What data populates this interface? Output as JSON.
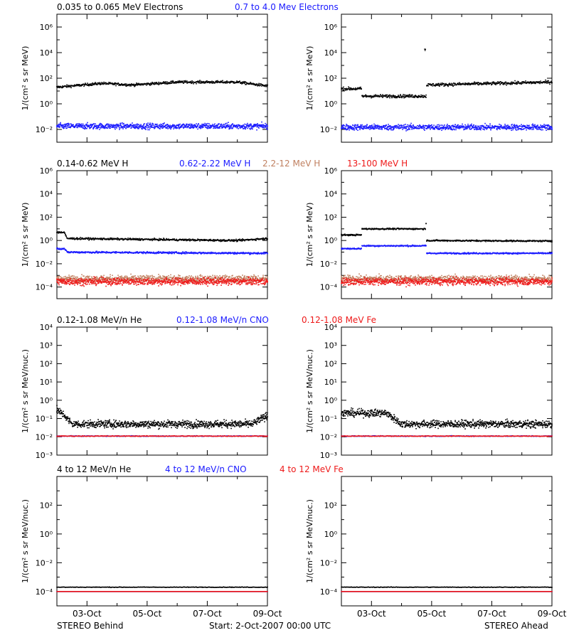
{
  "colors": {
    "black": "#000000",
    "blue": "#1a1aff",
    "tan": "#c08060",
    "red": "#ee1a1a",
    "axis": "#000000",
    "background": "#ffffff"
  },
  "footer": {
    "left_label": "STEREO Behind",
    "center_label": "Start:  2-Oct-2007 00:00 UTC",
    "right_label": "STEREO Ahead"
  },
  "chart_data": [
    {
      "panel": "Electrons - STEREO Behind",
      "type": "scatter",
      "x_axis": {
        "type": "date",
        "range": [
          "2007-10-02T00:00",
          "2007-10-09T00:00"
        ],
        "ticks": [
          "2007-10-03",
          "2007-10-05",
          "2007-10-07",
          "2007-10-09"
        ],
        "tick_labels": [
          "03-Oct",
          "05-Oct",
          "07-Oct",
          "09-Oct"
        ],
        "tick_labels_shown": false
      },
      "y_axis": {
        "scale": "log",
        "exp_range": [
          -3,
          7
        ],
        "major_ticks": [
          -2,
          0,
          2,
          4,
          6
        ],
        "ylabel": "1/(cm² s sr MeV)"
      },
      "legend": [
        "0.035 to 0.065 MeV Electrons",
        "0.7 to 4.0 Mev Electrons"
      ],
      "series": [
        {
          "name": "0.035 to 0.065 MeV Electrons",
          "color": "black",
          "x": [
            "2007-10-02T00:00",
            "2007-10-03T12:00",
            "2007-10-04T12:00",
            "2007-10-06T00:00",
            "2007-10-08T00:00",
            "2007-10-09T00:00"
          ],
          "y": [
            20,
            40,
            30,
            50,
            50,
            25
          ],
          "scatter": 0.1
        },
        {
          "name": "0.7 to 4.0 Mev Electrons",
          "color": "blue",
          "x": [
            "2007-10-02T00:00",
            "2007-10-09T00:00"
          ],
          "y": [
            0.018,
            0.018
          ],
          "scatter": 0.22
        }
      ]
    },
    {
      "panel": "Electrons - STEREO Ahead",
      "type": "scatter",
      "x_axis": {
        "type": "date",
        "range": [
          "2007-10-02T00:00",
          "2007-10-09T00:00"
        ],
        "ticks": [
          "2007-10-03",
          "2007-10-05",
          "2007-10-07",
          "2007-10-09"
        ],
        "tick_labels": [
          "03-Oct",
          "05-Oct",
          "07-Oct",
          "09-Oct"
        ],
        "tick_labels_shown": false
      },
      "y_axis": {
        "scale": "log",
        "exp_range": [
          -3,
          7
        ],
        "major_ticks": [
          -2,
          0,
          2,
          4,
          6
        ],
        "ylabel": "1/(cm² s sr MeV)"
      },
      "legend": [],
      "series": [
        {
          "name": "0.035 to 0.065 MeV Electrons",
          "color": "black",
          "x": [
            "2007-10-02T00:00",
            "2007-10-02T16:00",
            "2007-10-02T16:01",
            "2007-10-04T20:00",
            "2007-10-04T20:01",
            "2007-10-09T00:00"
          ],
          "y": [
            15,
            15,
            4,
            4,
            30,
            50
          ],
          "scatter": 0.12
        },
        {
          "name": "0.035 to 0.065 MeV Electrons (spike)",
          "color": "black",
          "x": [
            "2007-10-04T18:00"
          ],
          "y": [
            20000
          ],
          "scatter": 0.1
        },
        {
          "name": "0.7 to 4.0 Mev Electrons",
          "color": "blue",
          "x": [
            "2007-10-02T00:00",
            "2007-10-09T00:00"
          ],
          "y": [
            0.015,
            0.015
          ],
          "scatter": 0.22
        }
      ]
    },
    {
      "panel": "Protons - STEREO Behind",
      "type": "scatter",
      "x_axis": {
        "type": "date",
        "range": [
          "2007-10-02T00:00",
          "2007-10-09T00:00"
        ],
        "ticks": [
          "2007-10-03",
          "2007-10-05",
          "2007-10-07",
          "2007-10-09"
        ],
        "tick_labels": [
          "03-Oct",
          "05-Oct",
          "07-Oct",
          "09-Oct"
        ],
        "tick_labels_shown": false
      },
      "y_axis": {
        "scale": "log",
        "exp_range": [
          -5,
          6
        ],
        "major_ticks": [
          -4,
          -2,
          0,
          2,
          4,
          6
        ],
        "ylabel": "1/(cm² s sr MeV)"
      },
      "legend": [
        "0.14-0.62 MeV H",
        "0.62-2.22 MeV H",
        "2.2-12 MeV H",
        "13-100 MeV H"
      ],
      "series": [
        {
          "name": "0.14-0.62 MeV H",
          "color": "black",
          "x": [
            "2007-10-02T00:00",
            "2007-10-02T06:00",
            "2007-10-02T08:00",
            "2007-10-08T00:00",
            "2007-10-09T00:00"
          ],
          "y": [
            5,
            5,
            1.5,
            1.0,
            1.5
          ],
          "scatter": 0.08
        },
        {
          "name": "0.62-2.22 MeV H",
          "color": "blue",
          "x": [
            "2007-10-02T00:00",
            "2007-10-02T06:00",
            "2007-10-02T08:00",
            "2007-10-09T00:00"
          ],
          "y": [
            0.2,
            0.2,
            0.1,
            0.08
          ],
          "scatter": 0.08
        },
        {
          "name": "2.2-12 MeV H",
          "color": "tan",
          "x": [
            "2007-10-02T00:00",
            "2007-10-09T00:00"
          ],
          "y": [
            0.0005,
            0.0005
          ],
          "scatter": 0.3
        },
        {
          "name": "13-100 MeV H",
          "color": "red",
          "x": [
            "2007-10-02T00:00",
            "2007-10-09T00:00"
          ],
          "y": [
            0.0003,
            0.0003
          ],
          "scatter": 0.3
        }
      ]
    },
    {
      "panel": "Protons - STEREO Ahead",
      "type": "scatter",
      "x_axis": {
        "type": "date",
        "range": [
          "2007-10-02T00:00",
          "2007-10-09T00:00"
        ],
        "ticks": [
          "2007-10-03",
          "2007-10-05",
          "2007-10-07",
          "2007-10-09"
        ],
        "tick_labels": [
          "03-Oct",
          "05-Oct",
          "07-Oct",
          "09-Oct"
        ],
        "tick_labels_shown": false
      },
      "y_axis": {
        "scale": "log",
        "exp_range": [
          -5,
          6
        ],
        "major_ticks": [
          -4,
          -2,
          0,
          2,
          4,
          6
        ],
        "ylabel": "1/(cm² s sr MeV)"
      },
      "legend": [],
      "series": [
        {
          "name": "0.14-0.62 MeV H",
          "color": "black",
          "x": [
            "2007-10-02T00:00",
            "2007-10-02T16:00",
            "2007-10-02T16:01",
            "2007-10-04T19:00",
            "2007-10-04T20:00",
            "2007-10-04T20:01",
            "2007-10-09T00:00"
          ],
          "y": [
            3,
            3,
            10,
            10,
            80,
            1.0,
            0.9
          ],
          "scatter": 0.06
        },
        {
          "name": "0.62-2.22 MeV H",
          "color": "blue",
          "x": [
            "2007-10-02T00:00",
            "2007-10-02T16:00",
            "2007-10-02T16:01",
            "2007-10-04T20:00",
            "2007-10-04T20:01",
            "2007-10-09T00:00"
          ],
          "y": [
            0.2,
            0.2,
            0.35,
            0.35,
            0.08,
            0.08
          ],
          "scatter": 0.06
        },
        {
          "name": "2.2-12 MeV H",
          "color": "tan",
          "x": [
            "2007-10-02T00:00",
            "2007-10-09T00:00"
          ],
          "y": [
            0.0005,
            0.0005
          ],
          "scatter": 0.3
        },
        {
          "name": "13-100 MeV H",
          "color": "red",
          "x": [
            "2007-10-02T00:00",
            "2007-10-09T00:00"
          ],
          "y": [
            0.0003,
            0.0003
          ],
          "scatter": 0.3
        }
      ]
    },
    {
      "panel": "Low-energy heavy ions - STEREO Behind",
      "type": "scatter",
      "x_axis": {
        "type": "date",
        "range": [
          "2007-10-02T00:00",
          "2007-10-09T00:00"
        ],
        "ticks": [
          "2007-10-03",
          "2007-10-05",
          "2007-10-07",
          "2007-10-09"
        ],
        "tick_labels": [
          "03-Oct",
          "05-Oct",
          "07-Oct",
          "09-Oct"
        ],
        "tick_labels_shown": false
      },
      "y_axis": {
        "scale": "log",
        "exp_range": [
          -3,
          4
        ],
        "major_ticks": [
          -3,
          -2,
          -1,
          0,
          1,
          2,
          3,
          4
        ],
        "ylabel": "1/(cm² s sr MeV/nuc.)"
      },
      "legend": [
        "0.12-1.08 MeV/n He",
        "0.12-1.08 MeV/n CNO",
        "0.12-1.08 MeV Fe"
      ],
      "series": [
        {
          "name": "0.12-1.08 MeV/n He",
          "color": "black",
          "x": [
            "2007-10-02T00:00",
            "2007-10-02T06:00",
            "2007-10-02T12:00",
            "2007-10-08T12:00",
            "2007-10-09T00:00"
          ],
          "y": [
            0.3,
            0.15,
            0.05,
            0.05,
            0.15
          ],
          "scatter": 0.2
        },
        {
          "name": "0.12-1.08 MeV/n CNO",
          "color": "blue",
          "x": [
            "2007-10-02T00:00",
            "2007-10-09T00:00"
          ],
          "y": [
            0.011,
            0.011
          ],
          "scatter": 0.02
        },
        {
          "name": "0.12-1.08 MeV Fe",
          "color": "red",
          "x": [
            "2007-10-02T00:00",
            "2007-10-09T00:00"
          ],
          "y": [
            0.011,
            0.011
          ],
          "scatter": 0.02
        }
      ]
    },
    {
      "panel": "Low-energy heavy ions - STEREO Ahead",
      "type": "scatter",
      "x_axis": {
        "type": "date",
        "range": [
          "2007-10-02T00:00",
          "2007-10-09T00:00"
        ],
        "ticks": [
          "2007-10-03",
          "2007-10-05",
          "2007-10-07",
          "2007-10-09"
        ],
        "tick_labels": [
          "03-Oct",
          "05-Oct",
          "07-Oct",
          "09-Oct"
        ],
        "tick_labels_shown": false
      },
      "y_axis": {
        "scale": "log",
        "exp_range": [
          -3,
          4
        ],
        "major_ticks": [
          -3,
          -2,
          -1,
          0,
          1,
          2,
          3,
          4
        ],
        "ylabel": "1/(cm² s sr MeV/nuc.)"
      },
      "legend": [],
      "series": [
        {
          "name": "0.12-1.08 MeV/n He",
          "color": "black",
          "x": [
            "2007-10-02T00:00",
            "2007-10-03T12:00",
            "2007-10-04T00:00",
            "2007-10-09T00:00"
          ],
          "y": [
            0.2,
            0.2,
            0.05,
            0.05
          ],
          "scatter": 0.2
        },
        {
          "name": "0.12-1.08 MeV/n CNO",
          "color": "blue",
          "x": [
            "2007-10-02T00:00",
            "2007-10-09T00:00"
          ],
          "y": [
            0.011,
            0.011
          ],
          "scatter": 0.02
        },
        {
          "name": "0.12-1.08 MeV Fe",
          "color": "red",
          "x": [
            "2007-10-02T00:00",
            "2007-10-09T00:00"
          ],
          "y": [
            0.011,
            0.011
          ],
          "scatter": 0.02
        }
      ]
    },
    {
      "panel": "High-energy heavy ions - STEREO Behind",
      "type": "scatter",
      "x_axis": {
        "type": "date",
        "range": [
          "2007-10-02T00:00",
          "2007-10-09T00:00"
        ],
        "ticks": [
          "2007-10-03",
          "2007-10-05",
          "2007-10-07",
          "2007-10-09"
        ],
        "tick_labels": [
          "03-Oct",
          "05-Oct",
          "07-Oct",
          "09-Oct"
        ],
        "tick_labels_shown": true
      },
      "y_axis": {
        "scale": "log",
        "exp_range": [
          -5,
          4
        ],
        "major_ticks": [
          -4,
          -2,
          0,
          2
        ],
        "ylabel": "1/(cm² s sr MeV/nuc.)"
      },
      "legend": [
        "4 to 12 MeV/n He",
        "4 to 12 MeV/n CNO",
        "4 to 12 MeV Fe"
      ],
      "series": [
        {
          "name": "4 to 12 MeV/n He",
          "color": "black",
          "x": [
            "2007-10-02T00:00",
            "2007-10-09T00:00"
          ],
          "y": [
            0.0002,
            0.0002
          ],
          "scatter": 0.02
        },
        {
          "name": "4 to 12 MeV/n CNO",
          "color": "blue",
          "x": [
            "2007-10-02T00:00",
            "2007-10-09T00:00"
          ],
          "y": [
            0.0001,
            0.0001
          ],
          "scatter": 0.0
        },
        {
          "name": "4 to 12 MeV Fe",
          "color": "red",
          "x": [
            "2007-10-02T00:00",
            "2007-10-09T00:00"
          ],
          "y": [
            0.0001,
            0.0001
          ],
          "scatter": 0.0
        }
      ]
    },
    {
      "panel": "High-energy heavy ions - STEREO Ahead",
      "type": "scatter",
      "x_axis": {
        "type": "date",
        "range": [
          "2007-10-02T00:00",
          "2007-10-09T00:00"
        ],
        "ticks": [
          "2007-10-03",
          "2007-10-05",
          "2007-10-07",
          "2007-10-09"
        ],
        "tick_labels": [
          "03-Oct",
          "05-Oct",
          "07-Oct",
          "09-Oct"
        ],
        "tick_labels_shown": true
      },
      "y_axis": {
        "scale": "log",
        "exp_range": [
          -5,
          4
        ],
        "major_ticks": [
          -4,
          -2,
          0,
          2
        ],
        "ylabel": "1/(cm² s sr MeV/nuc.)"
      },
      "legend": [],
      "series": [
        {
          "name": "4 to 12 MeV/n He",
          "color": "black",
          "x": [
            "2007-10-02T00:00",
            "2007-10-09T00:00"
          ],
          "y": [
            0.0002,
            0.0002
          ],
          "scatter": 0.02
        },
        {
          "name": "4 to 12 MeV/n CNO",
          "color": "blue",
          "x": [
            "2007-10-02T00:00",
            "2007-10-09T00:00"
          ],
          "y": [
            0.0001,
            0.0001
          ],
          "scatter": 0.0
        },
        {
          "name": "4 to 12 MeV Fe",
          "color": "red",
          "x": [
            "2007-10-02T00:00",
            "2007-10-09T00:00"
          ],
          "y": [
            0.0001,
            0.0001
          ],
          "scatter": 0.0
        }
      ]
    }
  ]
}
